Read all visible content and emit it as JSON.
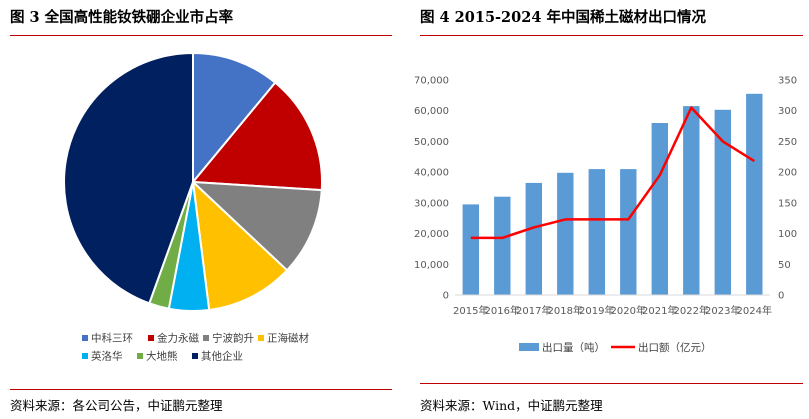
{
  "left": {
    "title": "图 3 全国高性能钕铁硼企业市占率",
    "source": "资料来源：各公司公告，中证鹏元整理"
  },
  "right": {
    "title": "图 4 2015-2024 年中国稀土磁材出口情况",
    "source": "资料来源：Wind，中证鹏元整理"
  },
  "colors": {
    "rule": "#c00000",
    "bar": "#5b9bd5",
    "line": "#ff0000"
  },
  "chart_data": [
    {
      "type": "pie",
      "title": "全国高性能钕铁硼企业市占率",
      "labels": [
        "中科三环",
        "金力永磁",
        "宁波韵升",
        "正海磁材",
        "英洛华",
        "大地熊",
        "其他企业"
      ],
      "values": [
        11,
        15,
        11,
        11,
        5,
        2.5,
        44.5
      ],
      "colors": [
        "#4472c4",
        "#c00000",
        "#808080",
        "#ffc000",
        "#00b0f0",
        "#70ad47",
        "#002060"
      ],
      "legend_position": "bottom"
    },
    {
      "type": "bar+line",
      "title": "2015-2024 年中国稀土磁材出口情况",
      "categories": [
        "2015年",
        "2016年",
        "2017年",
        "2018年",
        "2019年",
        "2020年",
        "2021年",
        "2022年",
        "2023年",
        "2024年"
      ],
      "series": [
        {
          "name": "出口量（吨）",
          "type": "bar",
          "axis": "left",
          "values": [
            29500,
            32000,
            36500,
            39800,
            41000,
            41000,
            56000,
            61500,
            60300,
            65500
          ]
        },
        {
          "name": "出口额（亿元）",
          "type": "line",
          "axis": "right",
          "values": [
            93,
            93,
            110,
            123,
            123,
            123,
            195,
            305,
            250,
            218
          ]
        }
      ],
      "y_left": {
        "min": 0,
        "max": 70000,
        "step": 10000,
        "ticks": [
          "0",
          "10,000",
          "20,000",
          "30,000",
          "40,000",
          "50,000",
          "60,000",
          "70,000"
        ]
      },
      "y_right": {
        "min": 0,
        "max": 350,
        "step": 50,
        "ticks": [
          "0",
          "50",
          "100",
          "150",
          "200",
          "250",
          "300",
          "350"
        ]
      },
      "legend_position": "bottom"
    }
  ]
}
